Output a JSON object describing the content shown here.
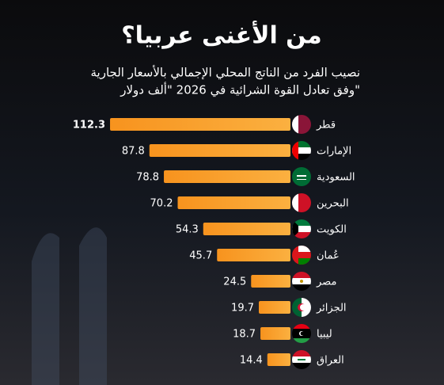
{
  "chart_data": {
    "type": "bar",
    "orientation": "horizontal",
    "title": "من الأغنى عربيا؟",
    "subtitle": [
      "نصيب الفرد من الناتج المحلي الإجمالي  بالأسعار الجارية",
      "وفق تعادل القوة الشرائية في 2026 \"ألف دولار\""
    ],
    "categories": [
      "قطر",
      "الإمارات",
      "السعودية",
      "البحرين",
      "الكويت",
      "عُمان",
      "مصر",
      "الجزائر",
      "ليبيا",
      "العراق"
    ],
    "values": [
      112.3,
      87.8,
      78.8,
      70.2,
      54.3,
      45.7,
      24.5,
      19.7,
      18.7,
      14.4
    ],
    "color": "#f7931e"
  }
}
